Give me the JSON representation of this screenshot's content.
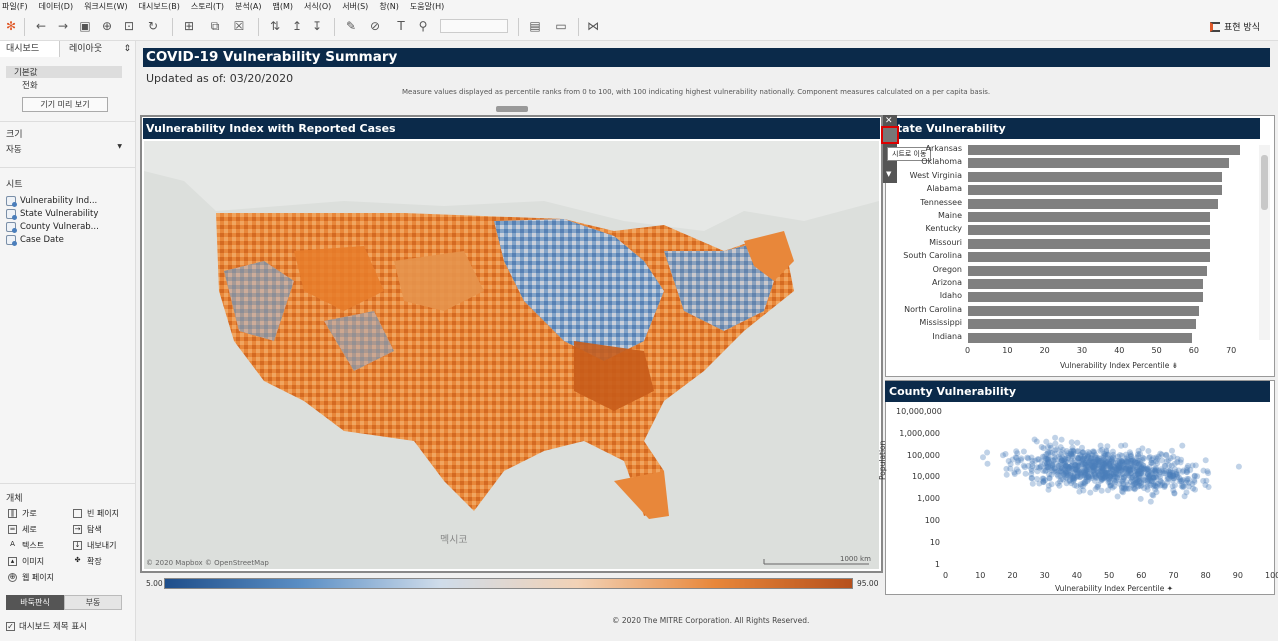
{
  "menu": [
    "파일(F)",
    "데이터(D)",
    "워크시트(W)",
    "대시보드(B)",
    "스토리(T)",
    "분석(A)",
    "맵(M)",
    "서식(O)",
    "서버(S)",
    "창(N)",
    "도움말(H)"
  ],
  "toolbar": {
    "present_label": "표현 방식"
  },
  "sidebar": {
    "tab_dashboard": "대시보드",
    "tab_layout": "레이아웃",
    "device_default": "기본값",
    "device_phone": "전화",
    "preview_button": "기기 미리 보기",
    "size_header": "크기",
    "size_value": "자동",
    "sheets_header": "시트",
    "sheets": [
      "Vulnerability Ind...",
      "State Vulnerability",
      "County Vulnerab...",
      "Case Date"
    ],
    "objects_header": "개체",
    "objects": [
      {
        "label": "가로",
        "icon": "horizontal-icon"
      },
      {
        "label": "빈 페이지",
        "icon": "blank-icon"
      },
      {
        "label": "세로",
        "icon": "vertical-icon"
      },
      {
        "label": "탐색",
        "icon": "navigation-icon"
      },
      {
        "label": "텍스트",
        "icon": "text-icon"
      },
      {
        "label": "내보내기",
        "icon": "download-icon"
      },
      {
        "label": "이미지",
        "icon": "image-icon"
      },
      {
        "label": "확장",
        "icon": "extension-icon"
      },
      {
        "label": "웹 페이지",
        "icon": "web-icon"
      }
    ],
    "tiled": "바둑판식",
    "floating": "부동",
    "show_title": "대시보드 제목 표시"
  },
  "dashboard": {
    "title": "COVID-19 Vulnerability Summary",
    "updated": "Updated as of: 03/20/2020",
    "measure_note": "Measure values displayed as percentile ranks from 0 to 100, with 100 indicating highest vulnerability nationally. Component measures calculated on a per capita basis.",
    "map_title": "Vulnerability Index with Reported Cases",
    "map_attribution": "© 2020 Mapbox © OpenStreetMap",
    "map_scale": "1000 km",
    "map_label_mexico": "멕시코",
    "legend_min": "5.00",
    "legend_max": "95.00",
    "tooltip": "시트로 이동",
    "copyright": "© 2020 The MITRE Corporation. All Rights Reserved."
  },
  "chart_data": [
    {
      "type": "bar",
      "title": "State Vulnerability",
      "categories": [
        "Arkansas",
        "Oklahoma",
        "West Virginia",
        "Alabama",
        "Tennessee",
        "Maine",
        "Kentucky",
        "Missouri",
        "South Carolina",
        "Oregon",
        "Arizona",
        "Idaho",
        "North Carolina",
        "Mississippi",
        "Indiana"
      ],
      "values": [
        73,
        70,
        68,
        68,
        67,
        65,
        65,
        65,
        65,
        64,
        63,
        63,
        62,
        61,
        60
      ],
      "xlabel": "Vulnerability Index Percentile",
      "xticks": [
        "0",
        "10",
        "20",
        "30",
        "40",
        "50",
        "60",
        "70"
      ],
      "xlim": [
        0,
        75
      ]
    },
    {
      "type": "scatter",
      "title": "County Vulnerability",
      "xlabel": "Vulnerability Index Percentile",
      "ylabel": "Population",
      "xticks": [
        "0",
        "10",
        "20",
        "30",
        "40",
        "50",
        "60",
        "70",
        "80",
        "90",
        "100"
      ],
      "yticks": [
        "10,000,000",
        "1,000,000",
        "100,000",
        "10,000",
        "1,000",
        "100",
        "10",
        "1"
      ],
      "ylog": true,
      "xlim": [
        0,
        100
      ]
    }
  ],
  "colors": {
    "title_bg": "#0b2a4a",
    "orange": "#e8873a",
    "blue": "#4a7ebb",
    "bar": "#808080"
  }
}
